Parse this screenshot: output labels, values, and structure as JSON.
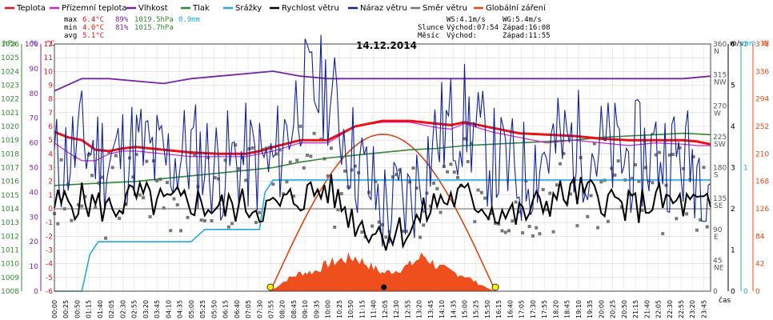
{
  "chart_data": {
    "type": "line",
    "title": "14.12.2014",
    "legend": [
      {
        "label": "Teplota",
        "color": "#ee1111"
      },
      {
        "label": "Přízemní teplota",
        "color": "#cc22cc"
      },
      {
        "label": "Vlhkost",
        "color": "#7722aa"
      },
      {
        "label": "Tlak",
        "color": "#338833"
      },
      {
        "label": "Srážky",
        "color": "#22aadd"
      },
      {
        "label": "Rychlost větru",
        "color": "#000000"
      },
      {
        "label": "Náraz větru",
        "color": "#112299"
      },
      {
        "label": "Směr větru",
        "color": "#777777"
      },
      {
        "label": "Globální záření",
        "color": "#ee4411"
      }
    ],
    "stats": {
      "rows": [
        {
          "label": "max",
          "temp": "6.4°C",
          "hum": "89%",
          "press": "1019.5hPa",
          "rain": "0.9mm"
        },
        {
          "label": "min",
          "temp": "4.0°C",
          "hum": "81%",
          "press": "1015.7hPa",
          "rain": ""
        },
        {
          "label": "avg",
          "temp": "5.1°C",
          "hum": "",
          "press": "",
          "rain": ""
        }
      ],
      "ws": "WS:4.1m/s",
      "wg": "WG:5.4m/s",
      "sun_label": "Slunce",
      "sunrise": "Východ:07:54",
      "sunset": "Západ:16:08",
      "moon_label": "Měsíc",
      "moonrise": "Východ:",
      "moonset": "Západ:11:55"
    },
    "axes": {
      "pressure": {
        "unit": "hPa",
        "ticks": [
          "1026",
          "1025",
          "1024",
          "1023",
          "1022",
          "1021",
          "1020",
          "1019",
          "1018",
          "1017",
          "1016",
          "1015",
          "1014",
          "1013",
          "1012",
          "1011",
          "1010",
          "1009",
          "1008"
        ]
      },
      "humidity": {
        "unit": "%",
        "ticks": [
          "100",
          "90",
          "80",
          "70",
          "60",
          "50",
          "40",
          "30",
          "20",
          "10",
          "0"
        ]
      },
      "temperature": {
        "unit": "°C",
        "ticks": [
          "12",
          "11",
          "10",
          "9",
          "8",
          "7",
          "6",
          "5",
          "4",
          "3",
          "2",
          "1",
          "0",
          "-1",
          "-2",
          "-3",
          "-4",
          "-5",
          "-6"
        ]
      },
      "wind_dir": {
        "ticks": [
          {
            "v": "360",
            "c": "N"
          },
          {
            "v": "315",
            "c": "NW"
          },
          {
            "v": "270",
            "c": "W"
          },
          {
            "v": "225",
            "c": "SW"
          },
          {
            "v": "180",
            "c": "S"
          },
          {
            "v": "135",
            "c": "SE"
          },
          {
            "v": "90",
            "c": "E"
          },
          {
            "v": "45",
            "c": "NE"
          },
          {
            "v": "0",
            "c": ""
          }
        ]
      },
      "wind_speed": {
        "unit": "m/s",
        "ticks": [
          "6",
          "5",
          "4",
          "3",
          "2",
          "1",
          "0"
        ]
      },
      "rain": {
        "unit": "mm",
        "ticks": [
          "2",
          "1",
          "0"
        ]
      },
      "radiation": {
        "unit": "W",
        "ticks": [
          "378",
          "336",
          "294",
          "252",
          "210",
          "168",
          "126",
          "84",
          "42",
          "0"
        ]
      },
      "x_label": "čas",
      "x_ticks": [
        "00:00",
        "00:25",
        "00:50",
        "01:15",
        "01:40",
        "02:05",
        "02:30",
        "02:55",
        "03:20",
        "03:45",
        "04:10",
        "04:35",
        "05:00",
        "05:25",
        "05:50",
        "06:15",
        "06:40",
        "07:05",
        "07:30",
        "07:55",
        "08:20",
        "08:45",
        "09:10",
        "09:35",
        "10:00",
        "10:25",
        "10:50",
        "11:15",
        "11:40",
        "12:05",
        "12:30",
        "12:55",
        "13:20",
        "13:45",
        "14:10",
        "14:35",
        "15:00",
        "15:25",
        "15:50",
        "16:15",
        "16:40",
        "17:05",
        "17:30",
        "17:55",
        "18:20",
        "18:45",
        "19:10",
        "19:35",
        "20:00",
        "20:25",
        "20:50",
        "21:15",
        "21:40",
        "22:05",
        "22:30",
        "22:55",
        "23:20",
        "23:45"
      ]
    },
    "series": [
      {
        "name": "Teplota",
        "unit": "°C",
        "x": [
          0,
          0.5,
          1,
          1.5,
          2,
          2.5,
          3,
          4,
          5,
          6,
          7,
          7.5,
          8,
          9,
          10,
          11,
          12,
          13,
          14,
          14.5,
          15,
          16,
          17,
          18,
          19,
          20,
          21,
          22,
          23,
          23.5,
          24
        ],
        "values": [
          5.6,
          5.2,
          5.0,
          4.3,
          4.2,
          4.4,
          4.5,
          4.3,
          4.1,
          4.0,
          4.0,
          4.2,
          4.5,
          5.0,
          5.0,
          6.0,
          6.4,
          6.4,
          6.2,
          6.1,
          6.3,
          5.9,
          5.5,
          5.4,
          5.3,
          5.1,
          5.0,
          5.0,
          5.0,
          4.9,
          4.7
        ]
      },
      {
        "name": "Přízemní teplota",
        "unit": "°C",
        "x": [
          0,
          0.5,
          1,
          1.5,
          2,
          2.5,
          3,
          4,
          5,
          6,
          7,
          7.5,
          8,
          9,
          10,
          11,
          12,
          13,
          14,
          14.5,
          15,
          16,
          17,
          18,
          19,
          20,
          21,
          22,
          23,
          23.5,
          24
        ],
        "values": [
          4.8,
          4.1,
          3.5,
          3.5,
          4.0,
          4.2,
          4.2,
          4.0,
          3.8,
          3.8,
          3.8,
          4.0,
          4.2,
          4.8,
          4.8,
          6.0,
          6.3,
          6.3,
          5.9,
          5.8,
          6.2,
          5.6,
          5.2,
          4.8,
          5.0,
          4.8,
          4.6,
          4.8,
          4.7,
          4.6,
          4.6
        ]
      },
      {
        "name": "Vlhkost",
        "unit": "%",
        "x": [
          0,
          1,
          2,
          3,
          4,
          5,
          6,
          7,
          8,
          9,
          10,
          11,
          12,
          13,
          14,
          15,
          16,
          17,
          18,
          19,
          20,
          21,
          22,
          23,
          24
        ],
        "values": [
          81,
          86,
          86,
          85,
          84,
          86,
          87,
          88,
          89,
          87,
          86,
          86,
          86,
          86,
          86,
          86,
          86,
          86,
          86,
          86,
          86,
          86,
          86,
          86,
          87
        ]
      },
      {
        "name": "Tlak",
        "unit": "hPa",
        "x": [
          0,
          1,
          2,
          3,
          4,
          5,
          6,
          7,
          8,
          9,
          10,
          11,
          12,
          13,
          14,
          15,
          16,
          17,
          18,
          19,
          20,
          21,
          22,
          23,
          24
        ],
        "values": [
          1015.7,
          1015.8,
          1015.9,
          1016.0,
          1016.2,
          1016.4,
          1016.6,
          1016.8,
          1017.0,
          1017.4,
          1017.7,
          1017.9,
          1018.1,
          1018.3,
          1018.4,
          1018.6,
          1018.7,
          1018.8,
          1018.9,
          1019.0,
          1019.2,
          1019.3,
          1019.4,
          1019.5,
          1019.4
        ]
      },
      {
        "name": "Srážky",
        "unit": "mm",
        "x": [
          0,
          1.0,
          1.3,
          1.6,
          5.0,
          5.5,
          7.5,
          7.7,
          8.0,
          24
        ],
        "values": [
          0,
          0,
          0.3,
          0.4,
          0.4,
          0.5,
          0.5,
          0.8,
          0.9,
          0.9
        ]
      },
      {
        "name": "Rychlost větru",
        "unit": "m/s",
        "x": [
          0,
          1,
          2,
          3,
          4,
          5,
          6,
          7,
          8,
          9,
          10,
          11,
          12,
          13,
          14,
          15,
          16,
          17,
          18,
          19,
          20,
          21,
          22,
          23,
          24
        ],
        "values": [
          2.1,
          2.2,
          2.0,
          2.3,
          2.1,
          2.2,
          2.0,
          2.1,
          2.0,
          2.3,
          2.5,
          1.7,
          1.4,
          1.5,
          2.2,
          2.3,
          2.0,
          1.8,
          2.2,
          2.4,
          2.3,
          2.0,
          2.2,
          2.1,
          2.0
        ]
      },
      {
        "name": "Náraz větru",
        "unit": "m/s",
        "x": [
          0,
          1,
          2,
          3,
          4,
          5,
          6,
          7,
          8,
          9,
          10,
          11,
          12,
          13,
          14,
          15,
          16,
          17,
          18,
          19,
          20,
          21,
          22,
          23,
          24
        ],
        "values": [
          3.0,
          3.6,
          3.2,
          3.5,
          3.1,
          3.4,
          3.0,
          3.2,
          3.0,
          4.8,
          4.9,
          3.2,
          2.0,
          2.2,
          3.8,
          4.2,
          3.2,
          2.8,
          3.4,
          3.6,
          3.4,
          3.2,
          3.4,
          3.2,
          3.0
        ]
      },
      {
        "name": "Směr větru",
        "unit": "°",
        "x": [
          0,
          1,
          2,
          3,
          4,
          5,
          6,
          7,
          8,
          9,
          10,
          11,
          12,
          13,
          14,
          15,
          16,
          17,
          18,
          19,
          20,
          21,
          22,
          23,
          24
        ],
        "values": [
          135,
          140,
          150,
          160,
          150,
          145,
          155,
          150,
          200,
          180,
          150,
          130,
          120,
          125,
          150,
          160,
          140,
          145,
          150,
          150,
          150,
          140,
          145,
          150,
          140
        ]
      },
      {
        "name": "Globální záření",
        "unit": "W",
        "x": [
          7.9,
          8.5,
          9,
          9.5,
          10,
          10.5,
          11,
          11.5,
          12,
          12.5,
          13,
          13.5,
          14,
          14.5,
          15,
          15.5,
          16.1
        ],
        "values": [
          0,
          18,
          28,
          30,
          42,
          48,
          52,
          40,
          28,
          32,
          40,
          55,
          38,
          30,
          24,
          12,
          0
        ]
      }
    ],
    "sunrise_h": 7.9,
    "sunset_h": 16.13
  }
}
